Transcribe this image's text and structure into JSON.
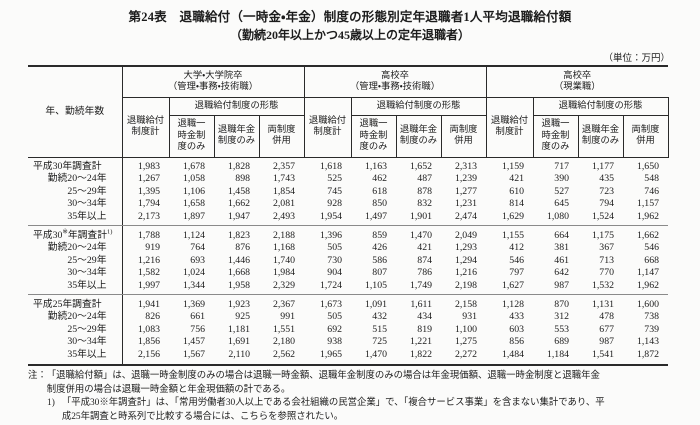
{
  "title": {
    "line1": "第24表　退職給付（一時金・年金）制度の形態別定年退職者1人平均退職給付額",
    "line2": "（勤続20年以上かつ45歳以上の定年退職者）"
  },
  "unit_label": "（単位：万円）",
  "table": {
    "row_header": "年、勤続年数",
    "groups": [
      {
        "title": "大学・大学院卒\n（管理・事務・技術職）"
      },
      {
        "title": "高校卒\n（管理・事務・技術職）"
      },
      {
        "title": "高校卒\n（現業職）"
      }
    ],
    "col_total": "退職給付\n制度計",
    "form_header": "退職給付制度の形態",
    "form_cols": [
      "退職一\n時金制\n度のみ",
      "退職年金\n制度のみ",
      "両制度\n併用"
    ],
    "rows": [
      {
        "label_parts": [
          {
            "t": "平成30年調査計"
          }
        ],
        "type": "head",
        "values": [
          "1,983",
          "1,678",
          "1,828",
          "2,357",
          "1,618",
          "1,163",
          "1,652",
          "2,313",
          "1,159",
          "717",
          "1,177",
          "1,650"
        ]
      },
      {
        "label_parts": [
          {
            "t": "勤続20～24年"
          }
        ],
        "type": "sub",
        "values": [
          "1,267",
          "1,058",
          "898",
          "1,743",
          "525",
          "462",
          "487",
          "1,239",
          "421",
          "390",
          "435",
          "548"
        ]
      },
      {
        "label_parts": [
          {
            "t": "25～29年"
          }
        ],
        "type": "sub",
        "values": [
          "1,395",
          "1,106",
          "1,458",
          "1,854",
          "745",
          "618",
          "878",
          "1,277",
          "610",
          "527",
          "723",
          "746"
        ]
      },
      {
        "label_parts": [
          {
            "t": "30～34年"
          }
        ],
        "type": "sub",
        "values": [
          "1,794",
          "1,658",
          "1,662",
          "2,081",
          "928",
          "850",
          "832",
          "1,231",
          "814",
          "645",
          "794",
          "1,157"
        ]
      },
      {
        "label_parts": [
          {
            "t": "35年以上"
          }
        ],
        "type": "sub",
        "section_end": true,
        "values": [
          "2,173",
          "1,897",
          "1,947",
          "2,493",
          "1,954",
          "1,497",
          "1,901",
          "2,474",
          "1,629",
          "1,080",
          "1,524",
          "1,962"
        ]
      },
      {
        "label_parts": [
          {
            "t": "平成30"
          },
          {
            "t": "※",
            "sup": true
          },
          {
            "t": "年調査計"
          },
          {
            "t": "1)",
            "sup": true
          }
        ],
        "type": "head",
        "section_start": true,
        "values": [
          "1,788",
          "1,124",
          "1,823",
          "2,188",
          "1,396",
          "859",
          "1,470",
          "2,049",
          "1,155",
          "664",
          "1,175",
          "1,662"
        ]
      },
      {
        "label_parts": [
          {
            "t": "勤続20～24年"
          }
        ],
        "type": "sub",
        "values": [
          "919",
          "764",
          "876",
          "1,168",
          "505",
          "426",
          "421",
          "1,293",
          "412",
          "381",
          "367",
          "546"
        ]
      },
      {
        "label_parts": [
          {
            "t": "25～29年"
          }
        ],
        "type": "sub",
        "values": [
          "1,216",
          "693",
          "1,446",
          "1,740",
          "730",
          "586",
          "874",
          "1,294",
          "546",
          "461",
          "713",
          "668"
        ]
      },
      {
        "label_parts": [
          {
            "t": "30～34年"
          }
        ],
        "type": "sub",
        "values": [
          "1,582",
          "1,024",
          "1,668",
          "1,984",
          "904",
          "807",
          "786",
          "1,216",
          "797",
          "642",
          "770",
          "1,147"
        ]
      },
      {
        "label_parts": [
          {
            "t": "35年以上"
          }
        ],
        "type": "sub",
        "section_end": true,
        "values": [
          "1,997",
          "1,344",
          "1,958",
          "2,329",
          "1,724",
          "1,105",
          "1,749",
          "2,198",
          "1,627",
          "987",
          "1,532",
          "1,962"
        ]
      },
      {
        "label_parts": [
          {
            "t": "平成25年調査計"
          }
        ],
        "type": "head",
        "section_start": true,
        "values": [
          "1,941",
          "1,369",
          "1,923",
          "2,367",
          "1,673",
          "1,091",
          "1,611",
          "2,158",
          "1,128",
          "870",
          "1,131",
          "1,600"
        ]
      },
      {
        "label_parts": [
          {
            "t": "勤続20～24年"
          }
        ],
        "type": "sub",
        "values": [
          "826",
          "661",
          "925",
          "991",
          "505",
          "432",
          "434",
          "931",
          "433",
          "312",
          "478",
          "738"
        ]
      },
      {
        "label_parts": [
          {
            "t": "25～29年"
          }
        ],
        "type": "sub",
        "values": [
          "1,083",
          "756",
          "1,181",
          "1,551",
          "692",
          "515",
          "819",
          "1,100",
          "603",
          "553",
          "677",
          "739"
        ]
      },
      {
        "label_parts": [
          {
            "t": "30～34年"
          }
        ],
        "type": "sub",
        "values": [
          "1,856",
          "1,457",
          "1,691",
          "2,180",
          "938",
          "725",
          "1,221",
          "1,275",
          "856",
          "689",
          "987",
          "1,143"
        ]
      },
      {
        "label_parts": [
          {
            "t": "35年以上"
          }
        ],
        "type": "sub",
        "values": [
          "2,156",
          "1,567",
          "2,110",
          "2,562",
          "1,965",
          "1,470",
          "1,822",
          "2,272",
          "1,484",
          "1,184",
          "1,541",
          "1,872"
        ]
      }
    ]
  },
  "notes": {
    "prefix": "注：",
    "body": "「退職給付額」は、退職一時金制度のみの場合は退職一時金額、退職年金制度のみの場合は年金現価額、退職一時金制度と退職年金\n制度併用の場合は退職一時金額と年金現価額の計である。",
    "item_prefix": "1)",
    "item_body": "「平成30※年調査計」は、「常用労働者30人以上である会社組織の民営企業」で、「複合サービス事業」を含まない集計であり、平\n成25年調査と時系列で比較する場合には、こちらを参照されたい。"
  }
}
